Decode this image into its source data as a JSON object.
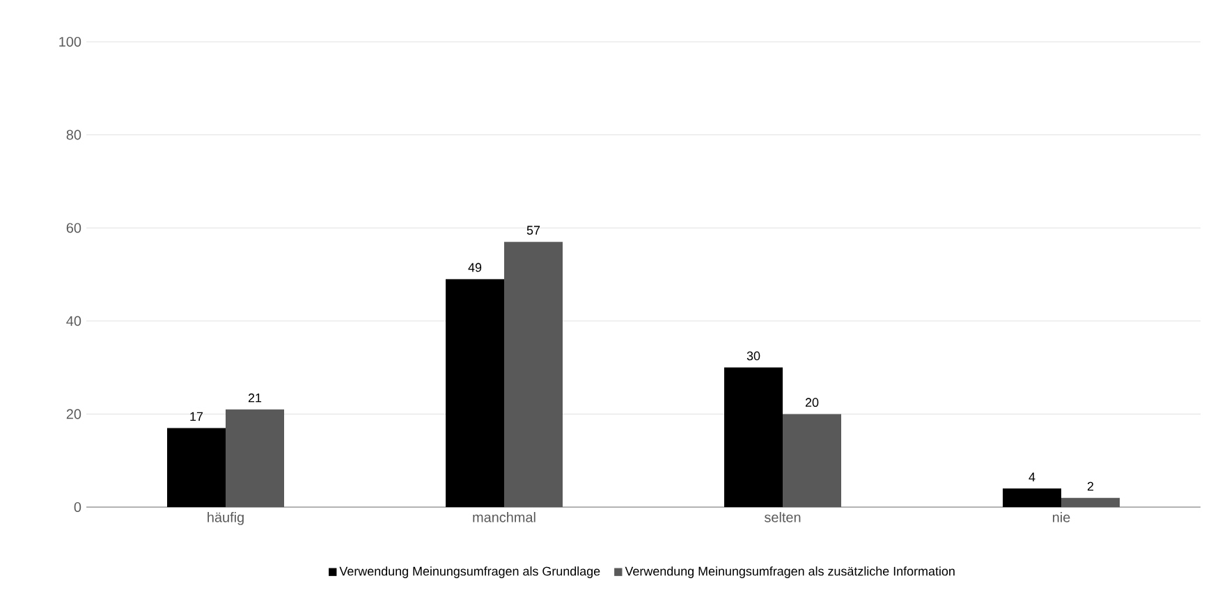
{
  "chart_data": {
    "type": "bar",
    "categories": [
      "häufig",
      "manchmal",
      "selten",
      "nie"
    ],
    "series": [
      {
        "name": "Verwendung Meinungsumfragen als Grundlage",
        "color": "#000000",
        "values": [
          17,
          49,
          30,
          4
        ]
      },
      {
        "name": "Verwendung Meinungsumfragen als zusätzliche Information",
        "color": "#595959",
        "values": [
          21,
          57,
          20,
          2
        ]
      }
    ],
    "ylim": [
      0,
      100
    ],
    "yticks": [
      0,
      20,
      40,
      60,
      80,
      100
    ],
    "grid": "y",
    "legend": "bottom",
    "data_labels": true
  }
}
